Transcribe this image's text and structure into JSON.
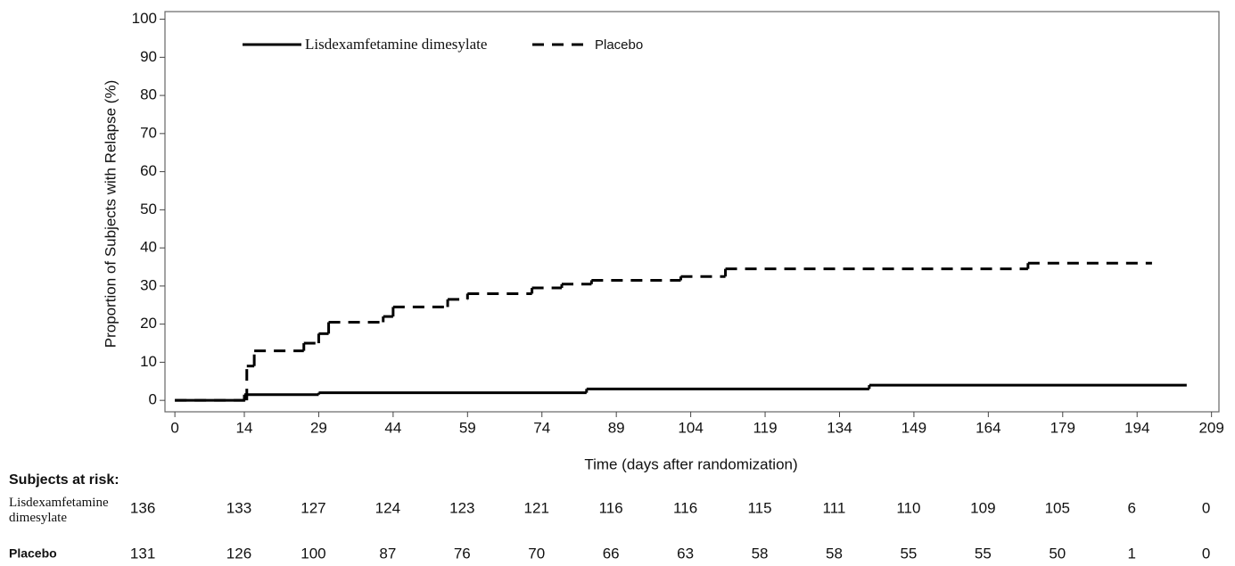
{
  "chart_data": {
    "type": "step",
    "y_label": "Proportion of Subjects with Relapse (%)",
    "x_label": "Time (days after randomization)",
    "xlim": [
      -2,
      210.5
    ],
    "ylim": [
      -3,
      102
    ],
    "xticks": [
      0,
      14,
      29,
      44,
      59,
      74,
      89,
      104,
      119,
      134,
      149,
      164,
      179,
      194,
      209
    ],
    "yticks": [
      0,
      10,
      20,
      30,
      40,
      50,
      60,
      70,
      80,
      90,
      100
    ],
    "series": [
      {
        "name": "Lisdexamfetamine dimesylate",
        "color": "#000000",
        "dashed": false,
        "x": [
          0,
          14,
          29,
          83,
          140,
          204
        ],
        "values": [
          0,
          1.5,
          2,
          3,
          4,
          4
        ]
      },
      {
        "name": "Placebo",
        "color": "#000000",
        "dashed": true,
        "x": [
          0,
          14.5,
          16,
          26,
          29,
          31,
          42,
          44,
          55,
          59,
          72,
          78,
          84,
          102,
          111,
          172,
          197
        ],
        "values": [
          0,
          9,
          13,
          15,
          17.5,
          20.5,
          22,
          24.5,
          26.5,
          28,
          29.5,
          30.5,
          31.5,
          32.5,
          34.5,
          36,
          36
        ]
      }
    ],
    "at_risk": {
      "title": "Subjects at risk:",
      "rows": [
        {
          "label": "Lisdexamfetamine dimesylate",
          "values": [
            136,
            133,
            127,
            124,
            123,
            121,
            116,
            116,
            115,
            111,
            110,
            109,
            105,
            6,
            0
          ]
        },
        {
          "label": "Placebo",
          "values": [
            131,
            126,
            100,
            87,
            76,
            70,
            66,
            63,
            58,
            58,
            55,
            55,
            50,
            1,
            0
          ]
        }
      ]
    }
  }
}
